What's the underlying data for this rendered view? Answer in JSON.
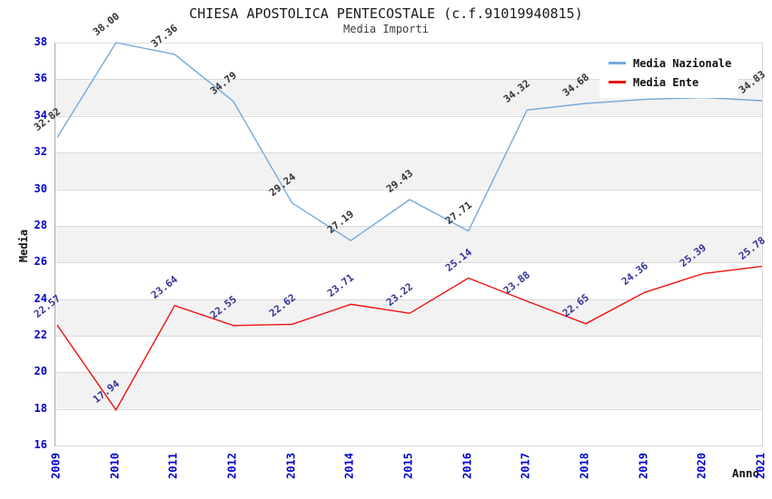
{
  "title": "CHIESA APOSTOLICA PENTECOSTALE (c.f.91019940815)",
  "subtitle": "Media Importi",
  "colors": {
    "axis_tick_text": "#0000cc",
    "grid_line": "#dadada",
    "band_gray": "#f2f2f2",
    "axis_line": "#a9a9a9",
    "national_line": "#74aadc",
    "ente_line": "#ee1111",
    "national_label_text": "#333333",
    "ente_label_text": "#333399"
  },
  "chart_data": {
    "type": "line",
    "title": "CHIESA APOSTOLICA PENTECOSTALE (c.f.91019940815)",
    "subtitle": "Media Importi",
    "xlabel": "Anno",
    "ylabel": "Media",
    "x_categories": [
      "2009",
      "2010",
      "2011",
      "2012",
      "2013",
      "2014",
      "2015",
      "2016",
      "2017",
      "2018",
      "2019",
      "2020",
      "2021"
    ],
    "ylim": [
      16,
      38
    ],
    "ytick_step": 2,
    "yticks": [
      16,
      18,
      20,
      22,
      24,
      26,
      28,
      30,
      32,
      34,
      36,
      38
    ],
    "grid": "horizontal gridlines with alternating gray bands every 2 units",
    "legend_position": "top-right",
    "series": [
      {
        "name": "Media Nazionale",
        "color": "#74aadc",
        "label_color": "#333333",
        "values": [
          32.82,
          38.0,
          37.36,
          34.79,
          29.24,
          27.19,
          29.43,
          27.71,
          34.32,
          34.68,
          34.9,
          35.0,
          34.83
        ],
        "labels": [
          "32.82",
          "38.00",
          "37.36",
          "34.79",
          "29.24",
          "27.19",
          "29.43",
          "27.71",
          "34.32",
          "34.68",
          "",
          "",
          "34.83"
        ],
        "note_2019_2020": "point labels hidden behind legend box; values estimated from line position"
      },
      {
        "name": "Media Ente",
        "color": "#ee1111",
        "label_color": "#333399",
        "values": [
          22.57,
          17.94,
          23.64,
          22.55,
          22.62,
          23.71,
          23.22,
          25.14,
          23.88,
          22.65,
          24.36,
          25.39,
          25.78
        ],
        "labels": [
          "22.57",
          "17.94",
          "23.64",
          "22.55",
          "22.62",
          "23.71",
          "23.22",
          "25.14",
          "23.88",
          "22.65",
          "24.36",
          "25.39",
          "25.78"
        ]
      }
    ]
  }
}
